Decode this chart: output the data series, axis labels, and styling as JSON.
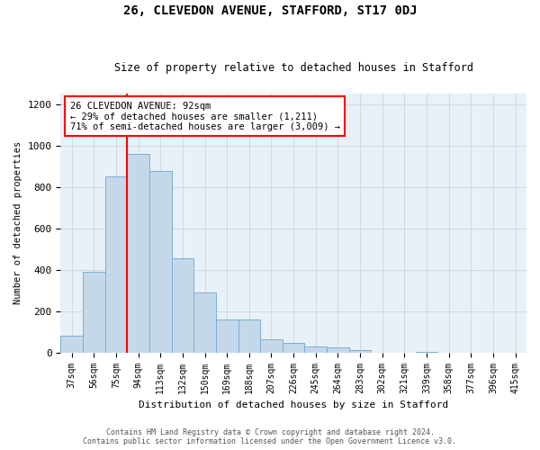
{
  "title1": "26, CLEVEDON AVENUE, STAFFORD, ST17 0DJ",
  "title2": "Size of property relative to detached houses in Stafford",
  "xlabel": "Distribution of detached houses by size in Stafford",
  "ylabel": "Number of detached properties",
  "categories": [
    "37sqm",
    "56sqm",
    "75sqm",
    "94sqm",
    "113sqm",
    "132sqm",
    "150sqm",
    "169sqm",
    "188sqm",
    "207sqm",
    "226sqm",
    "245sqm",
    "264sqm",
    "283sqm",
    "302sqm",
    "321sqm",
    "339sqm",
    "358sqm",
    "377sqm",
    "396sqm",
    "415sqm"
  ],
  "values": [
    80,
    390,
    850,
    960,
    875,
    455,
    290,
    160,
    160,
    65,
    45,
    30,
    25,
    10,
    0,
    0,
    5,
    0,
    0,
    0,
    0
  ],
  "bar_color": "#c5d8ea",
  "bar_edge_color": "#7aafd4",
  "vline_x": 2.5,
  "annotation_text": "26 CLEVEDON AVENUE: 92sqm\n← 29% of detached houses are smaller (1,211)\n71% of semi-detached houses are larger (3,009) →",
  "annotation_box_color": "white",
  "annotation_box_edge_color": "red",
  "vline_color": "red",
  "ylim": [
    0,
    1250
  ],
  "yticks": [
    0,
    200,
    400,
    600,
    800,
    1000,
    1200
  ],
  "footer1": "Contains HM Land Registry data © Crown copyright and database right 2024.",
  "footer2": "Contains public sector information licensed under the Open Government Licence v3.0.",
  "grid_color": "#d0d8e0",
  "bg_color": "#e8f0f8"
}
